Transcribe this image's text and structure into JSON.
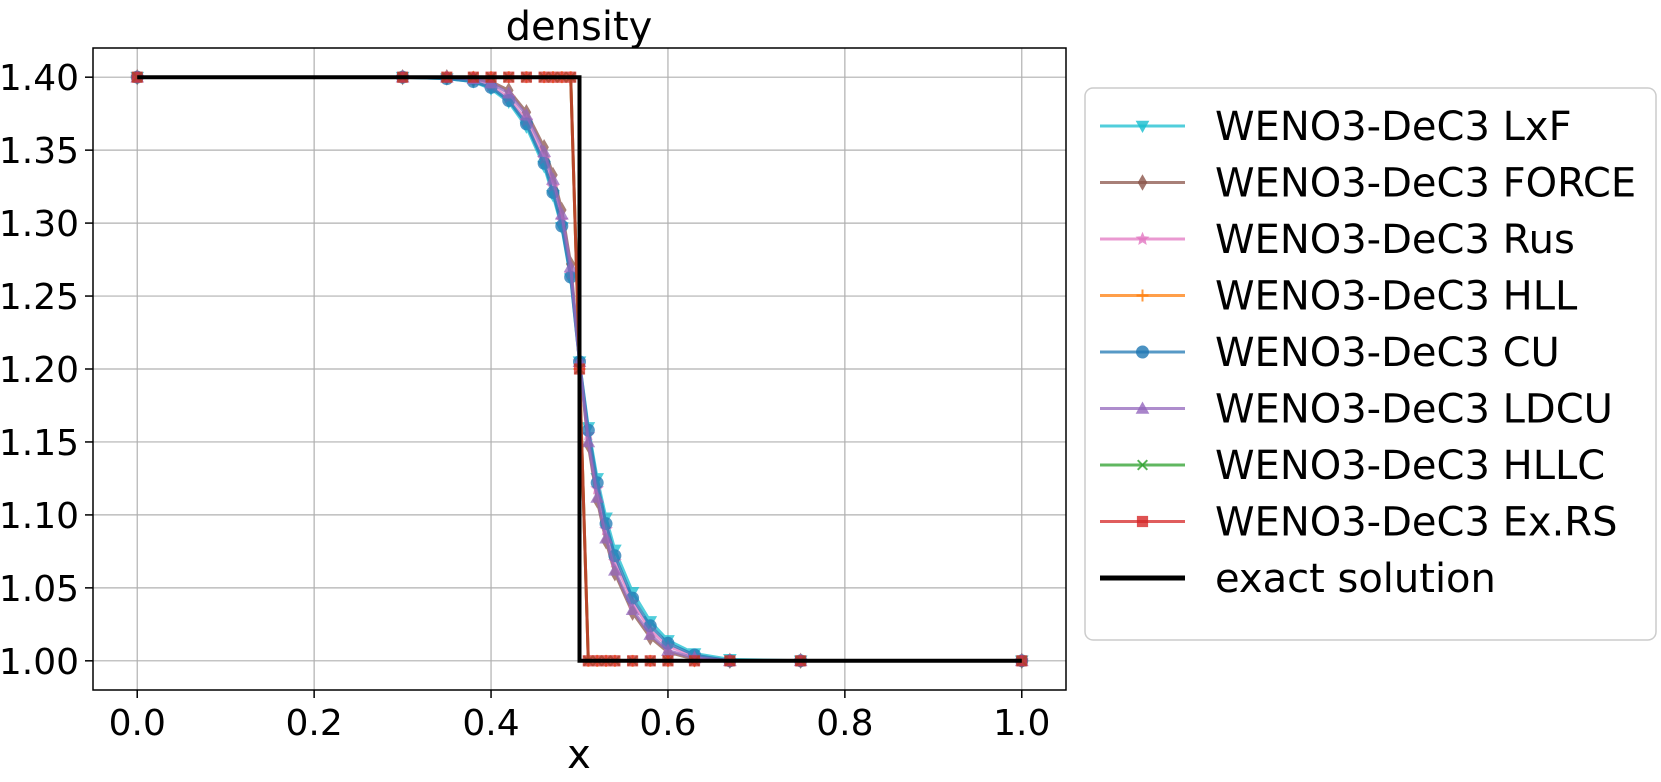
{
  "chart_data": {
    "type": "line",
    "title": "density",
    "xlabel": "x",
    "ylabel": "",
    "xlim": [
      -0.05,
      1.05
    ],
    "ylim": [
      0.98,
      1.42
    ],
    "x_ticks": [
      "0.0",
      "0.2",
      "0.4",
      "0.6",
      "0.8",
      "1.0"
    ],
    "y_ticks": [
      "1.00",
      "1.05",
      "1.10",
      "1.15",
      "1.20",
      "1.25",
      "1.30",
      "1.35",
      "1.40"
    ],
    "grid": true,
    "legend_position": "right-outside",
    "x": [
      0.0,
      0.3,
      0.35,
      0.38,
      0.4,
      0.42,
      0.44,
      0.46,
      0.47,
      0.48,
      0.49,
      0.5,
      0.51,
      0.52,
      0.53,
      0.54,
      0.56,
      0.58,
      0.6,
      0.63,
      0.67,
      0.75,
      1.0
    ],
    "series": [
      {
        "name": "WENO3-DeC3 LxF",
        "color": "#17becf",
        "marker": "triangle-down",
        "values": [
          1.4,
          1.4,
          1.399,
          1.397,
          1.392,
          1.383,
          1.366,
          1.339,
          1.319,
          1.297,
          1.262,
          1.205,
          1.16,
          1.125,
          1.098,
          1.076,
          1.047,
          1.027,
          1.014,
          1.005,
          1.001,
          1.0,
          1.0
        ]
      },
      {
        "name": "WENO3-DeC3 FORCE",
        "color": "#8c564b",
        "marker": "diamond",
        "values": [
          1.4,
          1.4,
          1.4,
          1.399,
          1.397,
          1.391,
          1.376,
          1.352,
          1.333,
          1.309,
          1.272,
          1.205,
          1.148,
          1.11,
          1.082,
          1.06,
          1.033,
          1.016,
          1.006,
          1.001,
          1.0,
          1.0,
          1.0
        ]
      },
      {
        "name": "WENO3-DeC3 Rus",
        "color": "#e377c2",
        "marker": "star",
        "values": [
          1.4,
          1.4,
          1.4,
          1.398,
          1.394,
          1.386,
          1.37,
          1.344,
          1.325,
          1.302,
          1.265,
          1.205,
          1.155,
          1.118,
          1.09,
          1.068,
          1.04,
          1.021,
          1.01,
          1.003,
          1.0,
          1.0,
          1.0
        ]
      },
      {
        "name": "WENO3-DeC3 HLL",
        "color": "#ff7f0e",
        "marker": "plus",
        "values": [
          1.4,
          1.4,
          1.4,
          1.4,
          1.4,
          1.4,
          1.4,
          1.4,
          1.4,
          1.4,
          1.4,
          1.2,
          1.0,
          1.0,
          1.0,
          1.0,
          1.0,
          1.0,
          1.0,
          1.0,
          1.0,
          1.0,
          1.0
        ]
      },
      {
        "name": "WENO3-DeC3 CU",
        "color": "#1f77b4",
        "marker": "circle",
        "values": [
          1.4,
          1.4,
          1.399,
          1.397,
          1.393,
          1.384,
          1.368,
          1.341,
          1.321,
          1.298,
          1.263,
          1.205,
          1.158,
          1.122,
          1.094,
          1.072,
          1.043,
          1.024,
          1.012,
          1.004,
          1.0,
          1.0,
          1.0
        ]
      },
      {
        "name": "WENO3-DeC3 LDCU",
        "color": "#9467bd",
        "marker": "triangle-up",
        "values": [
          1.4,
          1.4,
          1.4,
          1.399,
          1.396,
          1.389,
          1.374,
          1.349,
          1.33,
          1.306,
          1.27,
          1.205,
          1.15,
          1.112,
          1.084,
          1.062,
          1.035,
          1.018,
          1.007,
          1.002,
          1.0,
          1.0,
          1.0
        ]
      },
      {
        "name": "WENO3-DeC3 HLLC",
        "color": "#2ca02c",
        "marker": "x",
        "values": [
          1.4,
          1.4,
          1.4,
          1.4,
          1.4,
          1.4,
          1.4,
          1.4,
          1.4,
          1.4,
          1.4,
          1.2,
          1.0,
          1.0,
          1.0,
          1.0,
          1.0,
          1.0,
          1.0,
          1.0,
          1.0,
          1.0,
          1.0
        ]
      },
      {
        "name": "WENO3-DeC3 Ex.RS",
        "color": "#d62728",
        "marker": "square",
        "values": [
          1.4,
          1.4,
          1.4,
          1.4,
          1.4,
          1.4,
          1.4,
          1.4,
          1.4,
          1.4,
          1.4,
          1.2,
          1.0,
          1.0,
          1.0,
          1.0,
          1.0,
          1.0,
          1.0,
          1.0,
          1.0,
          1.0,
          1.0
        ]
      }
    ],
    "exact": {
      "name": "exact solution",
      "color": "#000000",
      "x": [
        0.0,
        0.5,
        0.5,
        1.0
      ],
      "values": [
        1.4,
        1.4,
        1.0,
        1.0
      ]
    }
  }
}
